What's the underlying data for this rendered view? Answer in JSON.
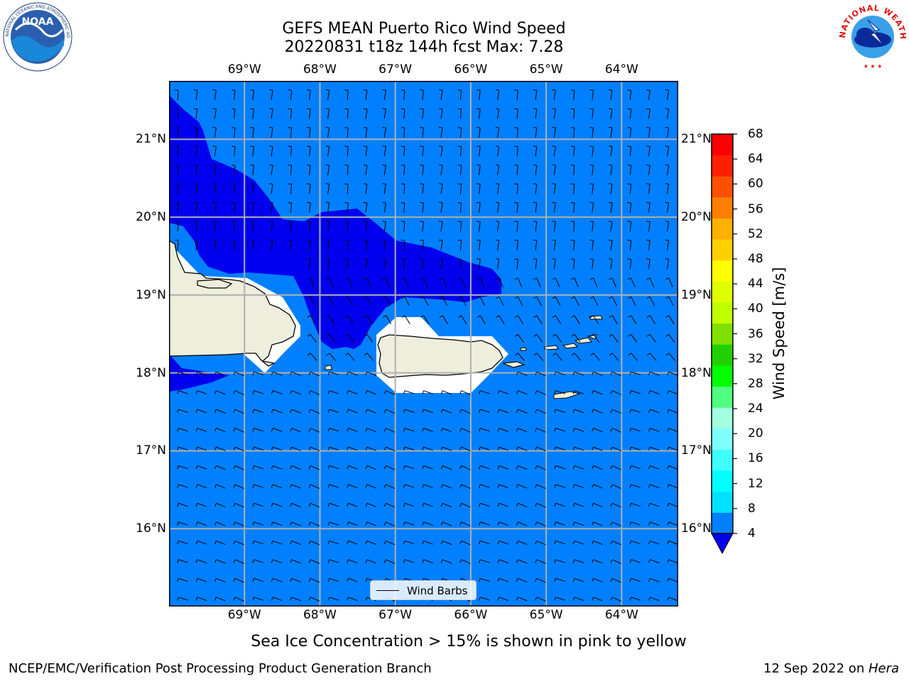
{
  "title": {
    "line1": "GEFS MEAN Puerto Rico Wind Speed",
    "line2": "20220831 t18z 144h fcst   Max: 7.28"
  },
  "map": {
    "lon_ticks": [
      "69°W",
      "68°W",
      "67°W",
      "66°W",
      "65°W",
      "64°W"
    ],
    "lat_ticks": [
      "21°N",
      "20°N",
      "19°N",
      "18°N",
      "17°N",
      "16°N"
    ],
    "extent": {
      "lon": [
        -70.0,
        -63.25
      ],
      "lat": [
        15.0,
        21.75
      ]
    },
    "colors": {
      "ocean_fill": "#0080ff",
      "low_wind_fill": "#0000ee",
      "land": "#eeeedc",
      "grid": "#b0b0b0"
    },
    "legend_label": "Wind Barbs"
  },
  "colorbar": {
    "label": "Wind Speed [m/s]",
    "levels": [
      "68",
      "64",
      "60",
      "56",
      "52",
      "48",
      "44",
      "40",
      "36",
      "32",
      "28",
      "24",
      "20",
      "16",
      "12",
      "8",
      "4"
    ],
    "colors_bottom_to_top": [
      "#0080ff",
      "#00e0ff",
      "#00ffff",
      "#40ffff",
      "#80ffff",
      "#a0ffe0",
      "#50ff80",
      "#00ff00",
      "#20d000",
      "#80e000",
      "#c0ff00",
      "#e0ff00",
      "#ffff00",
      "#ffd000",
      "#ffb000",
      "#ff8000",
      "#ff5000",
      "#ff2000",
      "#ff0000"
    ],
    "under_color": "#0000ee"
  },
  "subtitle": "Sea Ice Concentration > 15% is shown in pink to yellow",
  "footer": {
    "left": "NCEP/EMC/Verification Post Processing Product Generation Branch",
    "date": "12 Sep 2022 on ",
    "machine": "Hera"
  },
  "logos": {
    "left_text": "NOAA",
    "right_text": "NATIONAL WEATHER SERVICE"
  }
}
